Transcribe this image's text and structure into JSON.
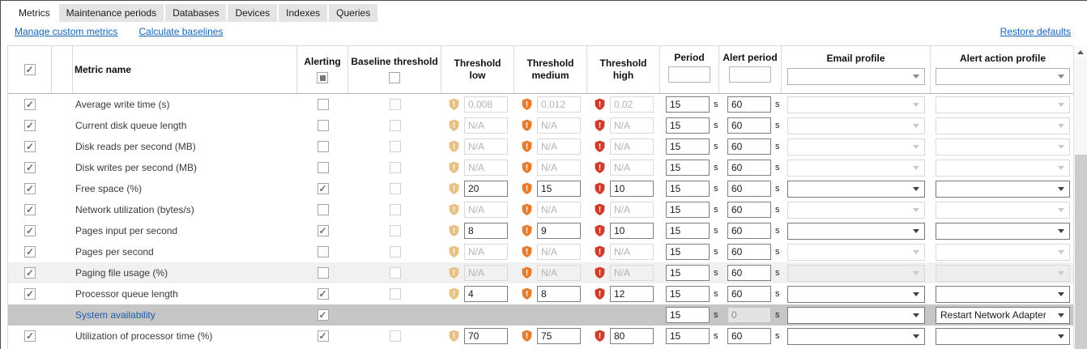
{
  "tabs": [
    {
      "label": "Metrics",
      "active": true
    },
    {
      "label": "Maintenance periods",
      "active": false
    },
    {
      "label": "Databases",
      "active": false
    },
    {
      "label": "Devices",
      "active": false
    },
    {
      "label": "Indexes",
      "active": false
    },
    {
      "label": "Queries",
      "active": false
    }
  ],
  "links": {
    "manage_custom_metrics": "Manage custom metrics",
    "calculate_baselines": "Calculate baselines",
    "restore_defaults": "Restore defaults"
  },
  "table": {
    "headers": {
      "metric_name": "Metric name",
      "alerting": "Alerting",
      "baseline_threshold": "Baseline threshold",
      "threshold_low": "Threshold low",
      "threshold_medium": "Threshold medium",
      "threshold_high": "Threshold high",
      "period": "Period",
      "alert_period": "Alert period",
      "email_profile": "Email profile",
      "alert_action_profile": "Alert action profile"
    },
    "seconds_unit": "s",
    "rows": [
      {
        "name": "Average write time (s)",
        "selected": true,
        "alerting": false,
        "has_baseline_checkbox": true,
        "has_thresholds": true,
        "low": "0.008",
        "medium": "0.012",
        "high": "0.02",
        "thresholds_enabled": false,
        "period": "15",
        "alert_period": "60",
        "alert_period_enabled": true,
        "dropdowns_enabled": false,
        "email_profile": "",
        "alert_action_profile": "",
        "row_style": "normal"
      },
      {
        "name": "Current disk queue length",
        "selected": true,
        "alerting": false,
        "has_baseline_checkbox": true,
        "has_thresholds": true,
        "low": "N/A",
        "medium": "N/A",
        "high": "N/A",
        "thresholds_enabled": false,
        "period": "15",
        "alert_period": "60",
        "alert_period_enabled": true,
        "dropdowns_enabled": false,
        "email_profile": "",
        "alert_action_profile": "",
        "row_style": "normal"
      },
      {
        "name": "Disk reads per second  (MB)",
        "selected": true,
        "alerting": false,
        "has_baseline_checkbox": true,
        "has_thresholds": true,
        "low": "N/A",
        "medium": "N/A",
        "high": "N/A",
        "thresholds_enabled": false,
        "period": "15",
        "alert_period": "60",
        "alert_period_enabled": true,
        "dropdowns_enabled": false,
        "email_profile": "",
        "alert_action_profile": "",
        "row_style": "normal"
      },
      {
        "name": "Disk writes per second (MB)",
        "selected": true,
        "alerting": false,
        "has_baseline_checkbox": true,
        "has_thresholds": true,
        "low": "N/A",
        "medium": "N/A",
        "high": "N/A",
        "thresholds_enabled": false,
        "period": "15",
        "alert_period": "60",
        "alert_period_enabled": true,
        "dropdowns_enabled": false,
        "email_profile": "",
        "alert_action_profile": "",
        "row_style": "normal"
      },
      {
        "name": "Free space (%)",
        "selected": true,
        "alerting": true,
        "has_baseline_checkbox": true,
        "has_thresholds": true,
        "low": "20",
        "medium": "15",
        "high": "10",
        "thresholds_enabled": true,
        "period": "15",
        "alert_period": "60",
        "alert_period_enabled": true,
        "dropdowns_enabled": true,
        "email_profile": "",
        "alert_action_profile": "",
        "row_style": "normal"
      },
      {
        "name": "Network utilization (bytes/s)",
        "selected": true,
        "alerting": false,
        "has_baseline_checkbox": true,
        "has_thresholds": true,
        "low": "N/A",
        "medium": "N/A",
        "high": "N/A",
        "thresholds_enabled": false,
        "period": "15",
        "alert_period": "60",
        "alert_period_enabled": true,
        "dropdowns_enabled": false,
        "email_profile": "",
        "alert_action_profile": "",
        "row_style": "normal"
      },
      {
        "name": "Pages input per second",
        "selected": true,
        "alerting": true,
        "has_baseline_checkbox": true,
        "has_thresholds": true,
        "low": "8",
        "medium": "9",
        "high": "10",
        "thresholds_enabled": true,
        "period": "15",
        "alert_period": "60",
        "alert_period_enabled": true,
        "dropdowns_enabled": true,
        "email_profile": "",
        "alert_action_profile": "",
        "row_style": "normal"
      },
      {
        "name": "Pages per second",
        "selected": true,
        "alerting": false,
        "has_baseline_checkbox": true,
        "has_thresholds": true,
        "low": "N/A",
        "medium": "N/A",
        "high": "N/A",
        "thresholds_enabled": false,
        "period": "15",
        "alert_period": "60",
        "alert_period_enabled": true,
        "dropdowns_enabled": false,
        "email_profile": "",
        "alert_action_profile": "",
        "row_style": "normal"
      },
      {
        "name": "Paging file usage (%)",
        "selected": true,
        "alerting": false,
        "has_baseline_checkbox": true,
        "has_thresholds": true,
        "low": "N/A",
        "medium": "N/A",
        "high": "N/A",
        "thresholds_enabled": false,
        "period": "15",
        "alert_period": "60",
        "alert_period_enabled": true,
        "dropdowns_enabled": false,
        "email_profile": "",
        "alert_action_profile": "",
        "row_style": "banded"
      },
      {
        "name": "Processor queue length",
        "selected": true,
        "alerting": true,
        "has_baseline_checkbox": true,
        "has_thresholds": true,
        "low": "4",
        "medium": "8",
        "high": "12",
        "thresholds_enabled": true,
        "period": "15",
        "alert_period": "60",
        "alert_period_enabled": true,
        "dropdowns_enabled": true,
        "email_profile": "",
        "alert_action_profile": "",
        "row_style": "normal"
      },
      {
        "name": "System availability",
        "selected": false,
        "alerting": true,
        "has_baseline_checkbox": false,
        "has_thresholds": false,
        "low": null,
        "medium": null,
        "high": null,
        "thresholds_enabled": false,
        "period": "15",
        "alert_period": "0",
        "alert_period_enabled": false,
        "dropdowns_enabled": true,
        "email_profile": "",
        "alert_action_profile": "Restart Network Adapter",
        "row_style": "selected"
      },
      {
        "name": "Utilization of processor time (%)",
        "selected": true,
        "alerting": true,
        "has_baseline_checkbox": true,
        "has_thresholds": true,
        "low": "70",
        "medium": "75",
        "high": "80",
        "thresholds_enabled": true,
        "period": "15",
        "alert_period": "60",
        "alert_period_enabled": true,
        "dropdowns_enabled": true,
        "email_profile": "",
        "alert_action_profile": "",
        "row_style": "normal"
      }
    ]
  },
  "colors": {
    "threshold_low_shield": "#e7c183",
    "threshold_medium_shield": "#e87c2e",
    "threshold_high_shield": "#d13b27",
    "link": "#1464b8",
    "selected_row": "#c6c6c6",
    "banded_row": "#f1f1f1"
  }
}
